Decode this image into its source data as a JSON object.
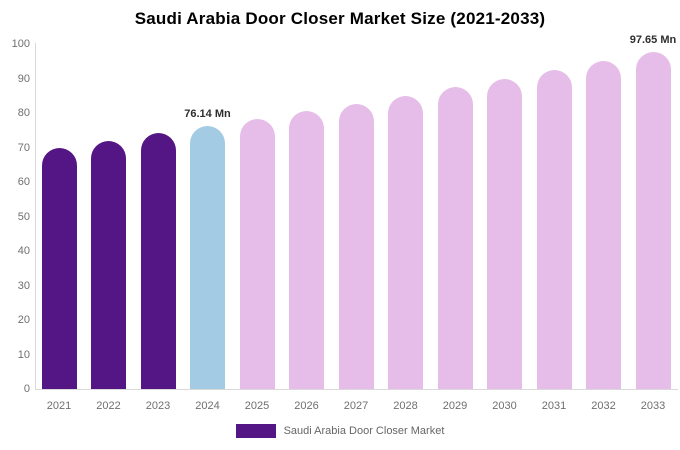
{
  "title": "Saudi Arabia Door Closer Market Size (2021-2033)",
  "legend": {
    "label": "Saudi Arabia Door Closer Market",
    "swatch_color": "#541685"
  },
  "colors": {
    "historical_bar": "#541685",
    "current_year_bar": "#a3cbe3",
    "forecast_bar": "#e5bde8",
    "axis_line": "#d9d9d9",
    "tick_label": "#6f6f6f",
    "value_label": "#2e2e2e",
    "title": "#000000",
    "background": "#ffffff"
  },
  "chart_data": {
    "type": "bar",
    "title": "Saudi Arabia Door Closer Market Size (2021-2033)",
    "unit": "Mn",
    "categories": [
      "2021",
      "2022",
      "2023",
      "2024",
      "2025",
      "2026",
      "2027",
      "2028",
      "2029",
      "2030",
      "2031",
      "2032",
      "2033"
    ],
    "values": [
      69.8,
      71.8,
      74.1,
      76.14,
      78.3,
      80.5,
      82.7,
      85.0,
      87.4,
      89.9,
      92.4,
      95.0,
      97.65
    ],
    "bar_colors": [
      "#541685",
      "#541685",
      "#541685",
      "#a3cbe3",
      "#e5bde8",
      "#e5bde8",
      "#e5bde8",
      "#e5bde8",
      "#e5bde8",
      "#e5bde8",
      "#e5bde8",
      "#e5bde8",
      "#e5bde8"
    ],
    "annotations": [
      {
        "category": "2024",
        "text": "76.14 Mn"
      },
      {
        "category": "2033",
        "text": "97.65 Mn"
      }
    ],
    "xlabel": "",
    "ylabel": "",
    "ylim": [
      0,
      100
    ],
    "ytick_step": 10,
    "grid": false,
    "legend_position": "bottom",
    "legend_entries": [
      "Saudi Arabia Door Closer Market"
    ]
  }
}
